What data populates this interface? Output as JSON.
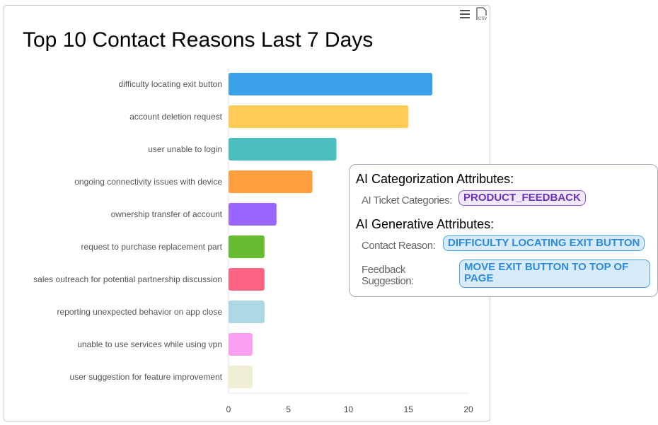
{
  "toolbar": {
    "menu_icon": "hamburger-menu-icon",
    "export_icon": "csv-file-icon"
  },
  "chart_data": {
    "type": "bar",
    "orientation": "horizontal",
    "title": "Top 10 Contact Reasons Last 7 Days",
    "categories": [
      "difficulty locating exit button",
      "account deletion request",
      "user unable to login",
      "ongoing connectivity issues with device",
      "ownership transfer of account",
      "request to purchase replacement part",
      "sales outreach for potential partnership discussion",
      "reporting unexpected behavior on app close",
      "unable to use services while using vpn",
      "user suggestion for feature improvement"
    ],
    "values": [
      17,
      15,
      9,
      7,
      4,
      3,
      3,
      3,
      2,
      2
    ],
    "colors": [
      "#3aa0e8",
      "#ffcc58",
      "#4bbfbf",
      "#ff9f40",
      "#9966ff",
      "#66bb30",
      "#ff6384",
      "#acd7e4",
      "#fba0f0",
      "#f0efd6"
    ],
    "xlim": [
      0,
      20
    ],
    "xticks": [
      "0",
      "5",
      "10",
      "15",
      "20"
    ],
    "grid": false
  },
  "popup": {
    "cat_heading": "AI Categorization Attributes:",
    "ticket_label": "AI Ticket Categories:",
    "ticket_value": "PRODUCT_FEEDBACK",
    "gen_heading": "AI Generative Attributes:",
    "reason_label": "Contact Reason:",
    "reason_value": "DIFFICULTY LOCATING EXIT BUTTON",
    "feedback_label": "Feedback Suggestion:",
    "feedback_value": "MOVE EXIT BUTTON TO TOP OF PAGE"
  }
}
